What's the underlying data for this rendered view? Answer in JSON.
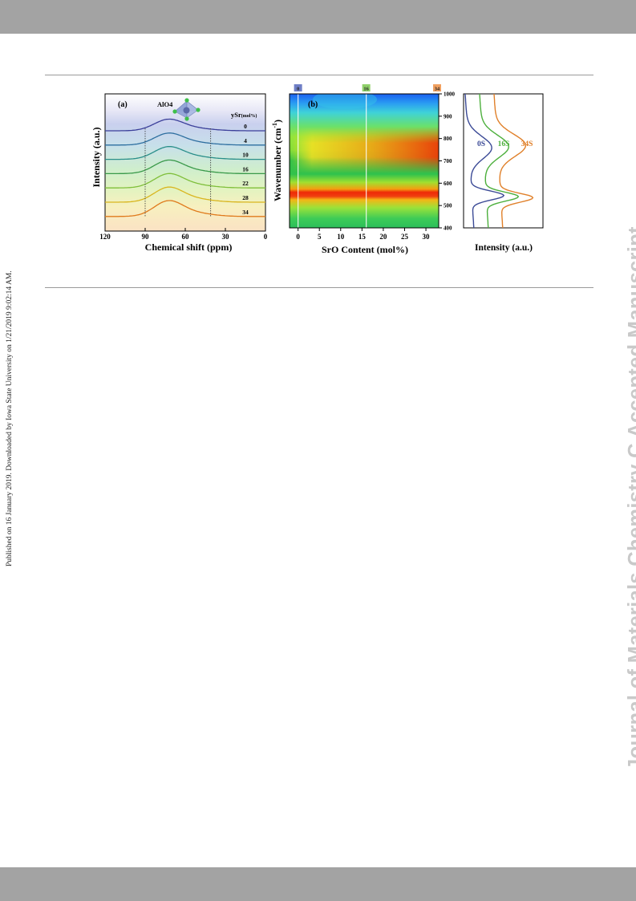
{
  "page": {
    "side_note": "Published on 16 January 2019. Downloaded by Iowa State University on 1/21/2019 9:02:14 AM.",
    "watermark": "Journal of Materials Chemistry C Accepted Manuscript"
  },
  "chart_data": [
    {
      "type": "line",
      "panel_label": "(a)",
      "annotation": "AlO4",
      "legend_title": "ySr",
      "legend_unit": "(mol%)",
      "xlabel": "Chemical shift (ppm)",
      "ylabel": "Intensity (a.u.)",
      "xlim": [
        120,
        0
      ],
      "x_ticks": [
        "120",
        "90",
        "60",
        "30",
        "0"
      ],
      "reference_lines_ppm": [
        90,
        41
      ],
      "peak_ppm": 73,
      "series": [
        {
          "name": "0",
          "color": "#3b3f9a",
          "peak_height": 0.6
        },
        {
          "name": "4",
          "color": "#2e6fa0",
          "peak_height": 0.62
        },
        {
          "name": "10",
          "color": "#2a8f8a",
          "peak_height": 0.66
        },
        {
          "name": "16",
          "color": "#3a9a4a",
          "peak_height": 0.7
        },
        {
          "name": "22",
          "color": "#7fbf3a",
          "peak_height": 0.74
        },
        {
          "name": "28",
          "color": "#d9b51e",
          "peak_height": 0.78
        },
        {
          "name": "34",
          "color": "#e07a1c",
          "peak_height": 0.82
        }
      ]
    },
    {
      "type": "heatmap",
      "panel_label": "(b)",
      "xlabel": "SrO Content  (mol%)",
      "ylabel": "Wavenumber (cm",
      "ylabel_sup": "-1",
      "ylabel_end": ")",
      "xlim": [
        -2,
        33
      ],
      "ylim": [
        400,
        1000
      ],
      "x_ticks": [
        "0",
        "5",
        "10",
        "15",
        "20",
        "25",
        "30"
      ],
      "y_ticks": [
        "400",
        "500",
        "600",
        "700",
        "800",
        "900",
        "1000"
      ],
      "markers": [
        {
          "label": "0",
          "x": 0,
          "color": "#6f7fc6"
        },
        {
          "label": "16",
          "x": 16,
          "color": "#8fd06a"
        },
        {
          "label": "34",
          "x": 34,
          "color": "#f0a060"
        }
      ],
      "bands": [
        {
          "center": 535,
          "width": 45,
          "strength": "strong"
        },
        {
          "center": 770,
          "width": 70,
          "strength": "grows with SrO"
        }
      ]
    },
    {
      "type": "line",
      "xlabel": "Intensity (a.u.)",
      "ylim": [
        400,
        1000
      ],
      "series": [
        {
          "name": "0S",
          "color": "#3b4a96",
          "peaks": [
            {
              "wavenumber": 545,
              "strength": 1.0
            },
            {
              "wavenumber": 760,
              "strength": 0.72
            }
          ]
        },
        {
          "name": "16S",
          "color": "#4caf3c",
          "peaks": [
            {
              "wavenumber": 540,
              "strength": 1.0
            },
            {
              "wavenumber": 765,
              "strength": 0.8
            }
          ]
        },
        {
          "name": "34S",
          "color": "#e0802a",
          "peaks": [
            {
              "wavenumber": 535,
              "strength": 1.0
            },
            {
              "wavenumber": 770,
              "strength": 0.88
            }
          ]
        }
      ]
    }
  ]
}
